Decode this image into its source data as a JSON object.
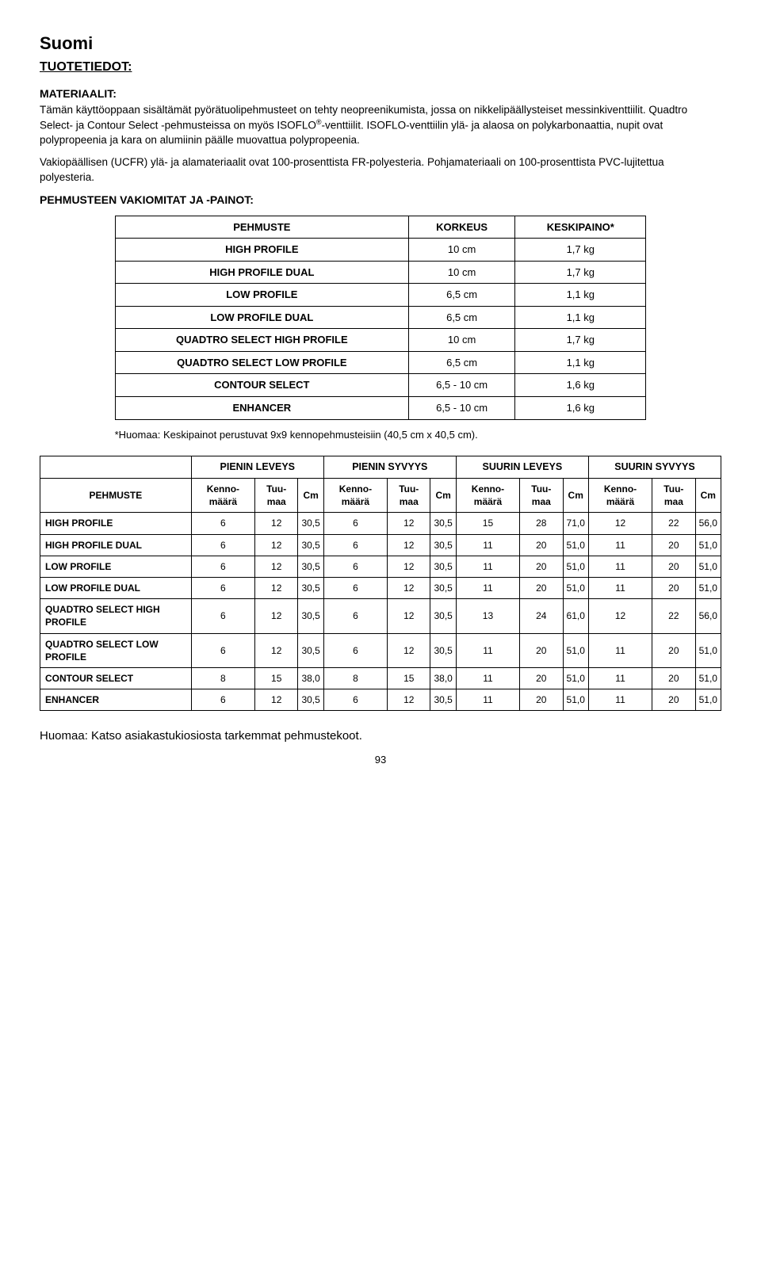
{
  "page": {
    "title": "Suomi",
    "section": "TUOTETIEDOT:",
    "materialsLabel": "MATERIAALIT:",
    "para1": "Tämän käyttöoppaan sisältämät pyörätuolipehmusteet on tehty neopreenikumista, jossa on nikkelipäällysteiset messinkiventtiilit. Quadtro Select- ja Contour Select -pehmusteissa on myös ISOFLO",
    "para1b": "-venttiilit. ISOFLO-venttiilin ylä- ja alaosa on polykarbonaattia, nupit ovat polypropeenia ja kara on alumiinin päälle muovattua polypropeenia.",
    "para2": "Vakiopäällisen (UCFR) ylä- ja alamateriaalit ovat 100-prosenttista FR-polyesteria. Pohjamateriaali on 100-prosenttista PVC-lujitettua polyesteria.",
    "dimHeading": "PEHMUSTEEN VAKIOMITAT JA -PAINOT:",
    "footnote": "*Huomaa: Keskipainot perustuvat 9x9 kennopehmusteisiin (40,5 cm x 40,5 cm).",
    "bottomNote": "Huomaa: Katso asiakastukiosiosta tarkemmat pehmustekoot.",
    "pageNumber": "93"
  },
  "table1": {
    "headers": [
      "PEHMUSTE",
      "KORKEUS",
      "KESKIPAINO*"
    ],
    "rows": [
      [
        "HIGH PROFILE",
        "10 cm",
        "1,7 kg"
      ],
      [
        "HIGH PROFILE DUAL",
        "10 cm",
        "1,7 kg"
      ],
      [
        "LOW PROFILE",
        "6,5 cm",
        "1,1 kg"
      ],
      [
        "LOW PROFILE DUAL",
        "6,5 cm",
        "1,1 kg"
      ],
      [
        "QUADTRO SELECT HIGH PROFILE",
        "10 cm",
        "1,7 kg"
      ],
      [
        "QUADTRO SELECT LOW PROFILE",
        "6,5 cm",
        "1,1 kg"
      ],
      [
        "CONTOUR SELECT",
        "6,5 - 10 cm",
        "1,6 kg"
      ],
      [
        "ENHANCER",
        "6,5 - 10 cm",
        "1,6 kg"
      ]
    ]
  },
  "table2": {
    "groupHeaders": [
      "PIENIN LEVEYS",
      "PIENIN SYVYYS",
      "SUURIN LEVEYS",
      "SUURIN SYVYYS"
    ],
    "rowHeaderLabel": "PEHMUSTE",
    "subHeaders": [
      "Kenno-määrä",
      "Tuu-maa",
      "Cm"
    ],
    "rows": [
      {
        "label": "HIGH PROFILE",
        "vals": [
          "6",
          "12",
          "30,5",
          "6",
          "12",
          "30,5",
          "15",
          "28",
          "71,0",
          "12",
          "22",
          "56,0"
        ]
      },
      {
        "label": "HIGH PROFILE DUAL",
        "vals": [
          "6",
          "12",
          "30,5",
          "6",
          "12",
          "30,5",
          "11",
          "20",
          "51,0",
          "11",
          "20",
          "51,0"
        ]
      },
      {
        "label": "LOW PROFILE",
        "vals": [
          "6",
          "12",
          "30,5",
          "6",
          "12",
          "30,5",
          "11",
          "20",
          "51,0",
          "11",
          "20",
          "51,0"
        ]
      },
      {
        "label": "LOW PROFILE DUAL",
        "vals": [
          "6",
          "12",
          "30,5",
          "6",
          "12",
          "30,5",
          "11",
          "20",
          "51,0",
          "11",
          "20",
          "51,0"
        ]
      },
      {
        "label": "QUADTRO SELECT HIGH PROFILE",
        "vals": [
          "6",
          "12",
          "30,5",
          "6",
          "12",
          "30,5",
          "13",
          "24",
          "61,0",
          "12",
          "22",
          "56,0"
        ]
      },
      {
        "label": "QUADTRO SELECT LOW PROFILE",
        "vals": [
          "6",
          "12",
          "30,5",
          "6",
          "12",
          "30,5",
          "11",
          "20",
          "51,0",
          "11",
          "20",
          "51,0"
        ]
      },
      {
        "label": "CONTOUR SELECT",
        "vals": [
          "8",
          "15",
          "38,0",
          "8",
          "15",
          "38,0",
          "11",
          "20",
          "51,0",
          "11",
          "20",
          "51,0"
        ]
      },
      {
        "label": "ENHANCER",
        "vals": [
          "6",
          "12",
          "30,5",
          "6",
          "12",
          "30,5",
          "11",
          "20",
          "51,0",
          "11",
          "20",
          "51,0"
        ]
      }
    ]
  }
}
